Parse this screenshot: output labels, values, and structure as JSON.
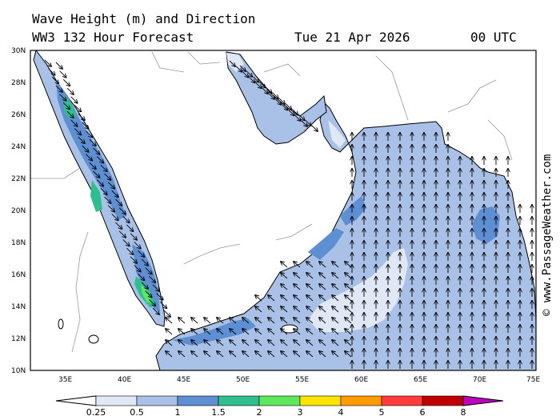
{
  "header": {
    "title_line1": "Wave Height (m) and Direction",
    "title_line2": "WW3 132 Hour Forecast",
    "date": "Tue 21 Apr 2026",
    "time": "00 UTC"
  },
  "credit": "© www.PassageWeather.com",
  "axes": {
    "lat_labels": [
      "30N",
      "28N",
      "26N",
      "24N",
      "22N",
      "20N",
      "18N",
      "16N",
      "14N",
      "12N",
      "10N"
    ],
    "lon_labels": [
      "35E",
      "40E",
      "45E",
      "50E",
      "55E",
      "60E",
      "65E",
      "70E",
      "75E"
    ]
  },
  "legend": {
    "labels": [
      "0.25",
      "0.5",
      "1",
      "1.5",
      "2",
      "3",
      "4",
      "5",
      "6",
      "8"
    ],
    "colors": [
      "#ffffff",
      "#e0e8f6",
      "#a9c1e6",
      "#5e8fd3",
      "#2fbf8e",
      "#5ee85e",
      "#ffe400",
      "#ff9a00",
      "#ff3b3b",
      "#c00000",
      "#c000c0"
    ]
  },
  "map_colors": {
    "land": "#ffffff",
    "sea_low": "#e0e8f6",
    "sea_mid": "#a9c1e6",
    "sea_high": "#5e8fd3",
    "sea_peak": "#2fbf8e",
    "sea_max": "#5ee85e",
    "coast": "#000000",
    "border": "#999999"
  }
}
